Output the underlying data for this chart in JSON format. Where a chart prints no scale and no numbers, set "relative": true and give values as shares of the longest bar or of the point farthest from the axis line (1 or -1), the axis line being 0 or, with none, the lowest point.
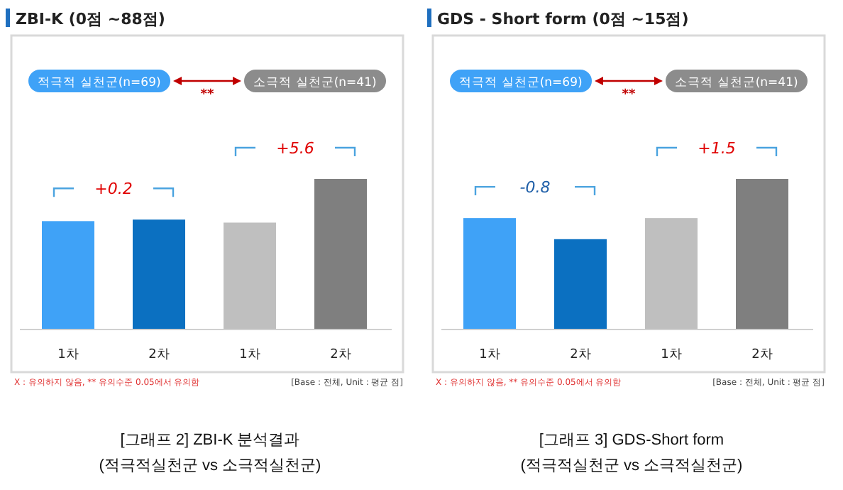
{
  "chart_data": [
    {
      "type": "bar",
      "title": "ZBI-K (0점 ~88점)",
      "relative": true,
      "legend": "top",
      "categories": [
        "1차",
        "2차",
        "1차",
        "2차"
      ],
      "series": [
        {
          "name": "적극적 실천군(n=69)",
          "color": "#3fa2f7",
          "colors": [
            "#3fa2f7",
            "#0b70c1",
            null,
            null
          ],
          "values": [
            0.72,
            0.73,
            null,
            null
          ]
        },
        {
          "name": "소극적 실천군(n=41)",
          "color": "#8c8c8c",
          "colors": [
            null,
            null,
            "#bfbfbf",
            "#7f7f7f"
          ],
          "values": [
            null,
            null,
            0.71,
            1
          ]
        }
      ],
      "annotations": [
        "+0.2",
        "+5.6",
        "**",
        "X : 유의하지 않음, ** 유의수준 0.05에서 유의함",
        "[Base : 전체, Unit : 평균 점]",
        "[그래프 2] ZBI-K 분석결과",
        "(적극적실천군 vs 소극적실천군)"
      ]
    },
    {
      "type": "bar",
      "title": "GDS - Short form (0점 ~15점)",
      "relative": true,
      "legend": "top",
      "categories": [
        "1차",
        "2차",
        "1차",
        "2차"
      ],
      "series": [
        {
          "name": "적극적 실천군(n=69)",
          "color": "#3fa2f7",
          "colors": [
            "#3fa2f7",
            "#0b70c1",
            null,
            null
          ],
          "values": [
            0.74,
            0.6,
            null,
            null
          ]
        },
        {
          "name": "소극적 실천군(n=41)",
          "color": "#8c8c8c",
          "colors": [
            null,
            null,
            "#bfbfbf",
            "#7f7f7f"
          ],
          "values": [
            null,
            null,
            0.74,
            1
          ]
        }
      ],
      "annotations": [
        "-0.8",
        "+1.5",
        "**",
        "X : 유의하지 않음, ** 유의수준 0.05에서 유의함",
        "[Base : 전체, Unit : 평균 점]",
        "[그래프 3] GDS-Short form",
        "(적극적실천군 vs 소극적실천군)"
      ]
    }
  ]
}
